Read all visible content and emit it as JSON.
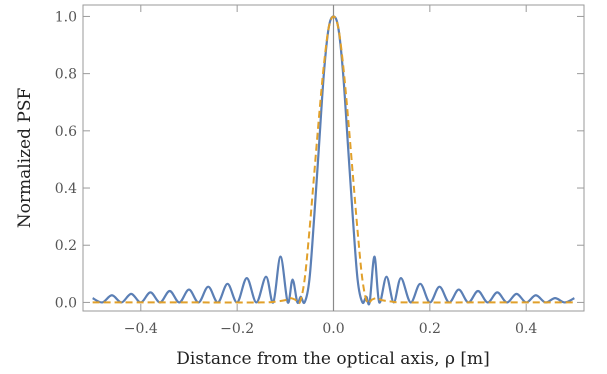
{
  "chart_data": {
    "type": "line",
    "title": "",
    "xlabel": "Distance from the optical axis,  ρ [m]",
    "ylabel": "Normalized PSF",
    "xlim": [
      -0.52,
      0.52
    ],
    "ylim": [
      -0.03,
      1.04
    ],
    "x_ticks": [
      -0.4,
      -0.2,
      0.0,
      0.2,
      0.4
    ],
    "x_tick_labels": [
      "−0.4",
      "−0.2",
      "0.0",
      "0.2",
      "0.4"
    ],
    "y_ticks": [
      0.0,
      0.2,
      0.4,
      0.6,
      0.8,
      1.0
    ],
    "y_tick_labels": [
      "0.0",
      "0.2",
      "0.4",
      "0.6",
      "0.8",
      "1.0"
    ],
    "grid": false,
    "vertical_reference_line_x": 0.0,
    "series": [
      {
        "style": "solid",
        "color": "#5b7fb5",
        "x": [
          -0.5,
          -0.48,
          -0.46,
          -0.44,
          -0.42,
          -0.4,
          -0.38,
          -0.36,
          -0.34,
          -0.32,
          -0.3,
          -0.28,
          -0.26,
          -0.24,
          -0.22,
          -0.2,
          -0.18,
          -0.16,
          -0.14,
          -0.125,
          -0.11,
          -0.095,
          -0.085,
          -0.075,
          -0.068,
          -0.06,
          -0.05,
          -0.04,
          -0.03,
          -0.02,
          -0.01,
          0.0,
          0.01,
          0.02,
          0.03,
          0.04,
          0.05,
          0.06,
          0.068,
          0.075,
          0.085,
          0.095,
          0.11,
          0.125,
          0.14,
          0.16,
          0.18,
          0.2,
          0.22,
          0.24,
          0.26,
          0.28,
          0.3,
          0.32,
          0.34,
          0.36,
          0.38,
          0.4,
          0.42,
          0.44,
          0.46,
          0.48,
          0.5
        ],
        "y": [
          0.015,
          0.0,
          0.025,
          0.0,
          0.03,
          0.0,
          0.035,
          0.0,
          0.04,
          0.0,
          0.045,
          0.0,
          0.055,
          0.0,
          0.065,
          0.0,
          0.085,
          0.0,
          0.09,
          0.0,
          0.16,
          0.0,
          0.08,
          0.0,
          0.02,
          0.0,
          0.08,
          0.3,
          0.55,
          0.8,
          0.96,
          1.0,
          0.96,
          0.8,
          0.55,
          0.3,
          0.08,
          0.0,
          0.02,
          0.0,
          0.16,
          0.0,
          0.09,
          0.0,
          0.085,
          0.0,
          0.065,
          0.0,
          0.055,
          0.0,
          0.045,
          0.0,
          0.04,
          0.0,
          0.035,
          0.0,
          0.03,
          0.0,
          0.025,
          0.0,
          0.015,
          0.0,
          0.015
        ]
      },
      {
        "style": "dashed",
        "color": "#e1a02a",
        "x": [
          -0.5,
          -0.3,
          -0.15,
          -0.12,
          -0.1,
          -0.09,
          -0.08,
          -0.07,
          -0.06,
          -0.05,
          -0.04,
          -0.03,
          -0.02,
          -0.01,
          0.0,
          0.01,
          0.02,
          0.03,
          0.04,
          0.05,
          0.06,
          0.07,
          0.08,
          0.09,
          0.1,
          0.12,
          0.15,
          0.3,
          0.5
        ],
        "y": [
          0.0,
          0.0,
          0.0,
          0.003,
          0.008,
          0.015,
          0.01,
          0.0,
          0.08,
          0.25,
          0.45,
          0.65,
          0.83,
          0.96,
          1.0,
          0.96,
          0.83,
          0.65,
          0.45,
          0.25,
          0.08,
          0.0,
          0.01,
          0.015,
          0.008,
          0.003,
          0.0,
          0.0,
          0.0
        ]
      }
    ]
  }
}
